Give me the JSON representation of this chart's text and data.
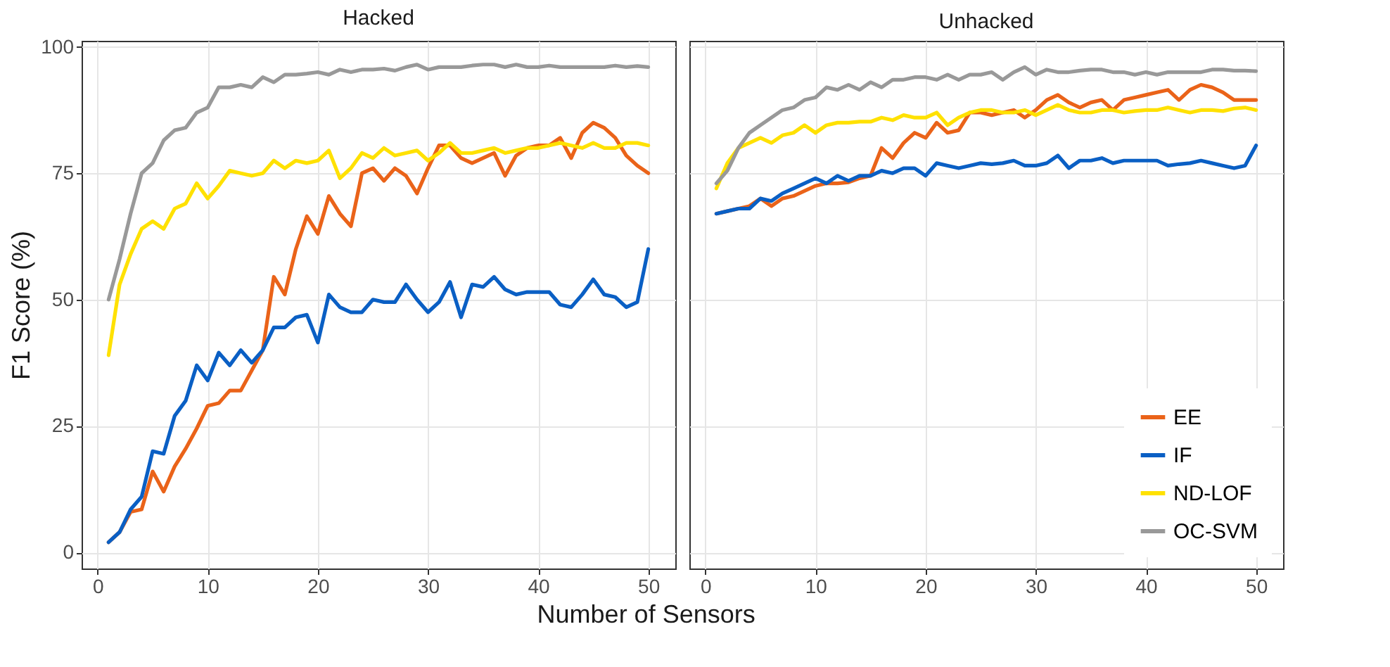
{
  "chart_data": [
    {
      "type": "line",
      "title": "Hacked",
      "xlabel": "Number of Sensors",
      "ylabel": "F1 Score (%)",
      "x": [
        1,
        2,
        3,
        4,
        5,
        6,
        7,
        8,
        9,
        10,
        11,
        12,
        13,
        14,
        15,
        16,
        17,
        18,
        19,
        20,
        21,
        22,
        23,
        24,
        25,
        26,
        27,
        28,
        29,
        30,
        31,
        32,
        33,
        34,
        35,
        36,
        37,
        38,
        39,
        40,
        41,
        42,
        43,
        44,
        45,
        46,
        47,
        48,
        49,
        50
      ],
      "xlim": [
        -1.45,
        52.45
      ],
      "xticks": [
        0,
        10,
        20,
        30,
        40,
        50
      ],
      "ylim": [
        -3.2,
        101.2
      ],
      "yticks": [
        0,
        25,
        50,
        75,
        100
      ],
      "grid": true,
      "legend": "bottom right",
      "series": [
        {
          "name": "EE",
          "color": "#ea6319",
          "values": [
            2,
            4,
            8,
            8.5,
            16,
            12,
            17,
            20.5,
            24.5,
            29,
            29.5,
            32,
            32,
            36,
            40,
            54.5,
            51,
            60,
            66.5,
            63,
            70.5,
            67,
            64.5,
            75,
            76,
            73.5,
            76,
            74.5,
            71,
            76,
            80.5,
            80.5,
            78,
            77,
            78,
            79,
            74.5,
            78.5,
            80,
            80.5,
            80.5,
            82,
            78,
            83,
            85,
            84,
            82,
            78.5,
            76.5,
            75
          ]
        },
        {
          "name": "IF",
          "color": "#0a5fc4",
          "values": [
            2,
            4,
            8.5,
            11,
            20,
            19.5,
            27,
            30,
            37,
            34,
            39.5,
            37,
            40,
            37.5,
            40,
            44.5,
            44.5,
            46.5,
            47,
            41.5,
            51,
            48.5,
            47.5,
            47.5,
            50,
            49.5,
            49.5,
            53,
            50,
            47.5,
            49.5,
            53.5,
            46.5,
            53,
            52.5,
            54.5,
            52,
            51,
            51.5,
            51.5,
            51.5,
            49,
            48.5,
            51,
            54,
            51,
            50.5,
            48.5,
            49.5,
            60
          ]
        },
        {
          "name": "ND-LOF",
          "color": "#ffe100",
          "values": [
            39,
            53,
            59,
            64,
            65.5,
            64,
            68,
            69,
            73,
            70,
            72.5,
            75.5,
            75,
            74.5,
            75,
            77.5,
            76,
            77.5,
            77,
            77.5,
            79.5,
            74,
            76,
            79,
            78,
            80,
            78.5,
            79,
            79.5,
            77.5,
            79,
            81,
            79,
            79,
            79.5,
            80,
            79,
            79.5,
            80,
            80,
            80.5,
            81,
            80.5,
            80,
            81,
            80,
            80,
            81,
            81,
            80.5
          ]
        },
        {
          "name": "OC-SVM",
          "color": "#999999",
          "values": [
            50,
            58,
            67,
            75,
            77,
            81.5,
            83.5,
            84,
            87,
            88,
            92,
            92,
            92.5,
            92,
            94,
            93,
            94.5,
            94.5,
            94.7,
            95,
            94.5,
            95.5,
            95,
            95.5,
            95.5,
            95.7,
            95.3,
            96,
            96.5,
            95.5,
            96,
            96,
            96,
            96.3,
            96.5,
            96.5,
            96,
            96.5,
            96,
            96,
            96.3,
            96,
            96,
            96,
            96,
            96,
            96.3,
            96,
            96.2,
            96
          ]
        }
      ]
    },
    {
      "type": "line",
      "title": "Unhacked",
      "x": [
        1,
        2,
        3,
        4,
        5,
        6,
        7,
        8,
        9,
        10,
        11,
        12,
        13,
        14,
        15,
        16,
        17,
        18,
        19,
        20,
        21,
        22,
        23,
        24,
        25,
        26,
        27,
        28,
        29,
        30,
        31,
        32,
        33,
        34,
        35,
        36,
        37,
        38,
        39,
        40,
        41,
        42,
        43,
        44,
        45,
        46,
        47,
        48,
        49,
        50
      ],
      "xlim": [
        -1.45,
        52.45
      ],
      "xticks": [
        0,
        10,
        20,
        30,
        40,
        50
      ],
      "ylim": [
        -3.2,
        101.2
      ],
      "yticks": [
        0,
        25,
        50,
        75,
        100
      ],
      "tick_labels": "x",
      "grid": true,
      "series": [
        {
          "color": "#ea6319",
          "values": [
            67,
            67.5,
            68,
            68.5,
            70,
            68.5,
            70,
            70.5,
            71.5,
            72.5,
            73,
            73,
            73.2,
            74,
            74.5,
            80,
            78,
            81,
            83,
            82,
            85,
            83,
            83.5,
            87,
            87,
            86.5,
            87,
            87.5,
            86,
            87.5,
            89.5,
            90.5,
            89,
            88,
            89,
            89.5,
            87.5,
            89.5,
            90,
            90.5,
            91,
            91.5,
            89.5,
            91.5,
            92.5,
            92,
            91,
            89.5,
            89.5,
            89.5
          ]
        },
        {
          "color": "#0a5fc4",
          "values": [
            67,
            67.5,
            68,
            68,
            70,
            69.5,
            71,
            72,
            73,
            74,
            73,
            74.5,
            73.5,
            74.5,
            74.5,
            75.5,
            75,
            76,
            76,
            74.5,
            77,
            76.5,
            76,
            76.5,
            77,
            76.8,
            77,
            77.5,
            76.5,
            76.5,
            77,
            78.5,
            76,
            77.5,
            77.5,
            78,
            77,
            77.5,
            77.5,
            77.5,
            77.5,
            76.5,
            76.8,
            77,
            77.5,
            77,
            76.5,
            76,
            76.5,
            80.5
          ]
        },
        {
          "color": "#ffe100",
          "values": [
            72,
            77,
            80,
            81,
            82,
            81,
            82.5,
            83,
            84.5,
            83,
            84.5,
            85,
            85,
            85.2,
            85.2,
            86,
            85.5,
            86.5,
            86,
            86,
            87,
            84.5,
            86,
            87,
            87.5,
            87.5,
            87,
            87,
            87.5,
            86.5,
            87.5,
            88.5,
            87.5,
            87,
            87,
            87.5,
            87.5,
            87,
            87.3,
            87.5,
            87.5,
            88,
            87.5,
            87,
            87.5,
            87.5,
            87.3,
            87.8,
            88,
            87.5
          ]
        },
        {
          "color": "#999999",
          "values": [
            73,
            75.5,
            80,
            83,
            84.5,
            86,
            87.5,
            88,
            89.5,
            90,
            92,
            91.5,
            92.5,
            91.5,
            93,
            92,
            93.5,
            93.5,
            94,
            94,
            93.5,
            94.5,
            93.5,
            94.5,
            94.5,
            95,
            93.5,
            95,
            96,
            94.5,
            95.5,
            95,
            95,
            95.3,
            95.5,
            95.5,
            95,
            95,
            94.5,
            95,
            94.5,
            95,
            95,
            95,
            95,
            95.5,
            95.5,
            95.3,
            95.3,
            95.2
          ]
        }
      ]
    }
  ]
}
